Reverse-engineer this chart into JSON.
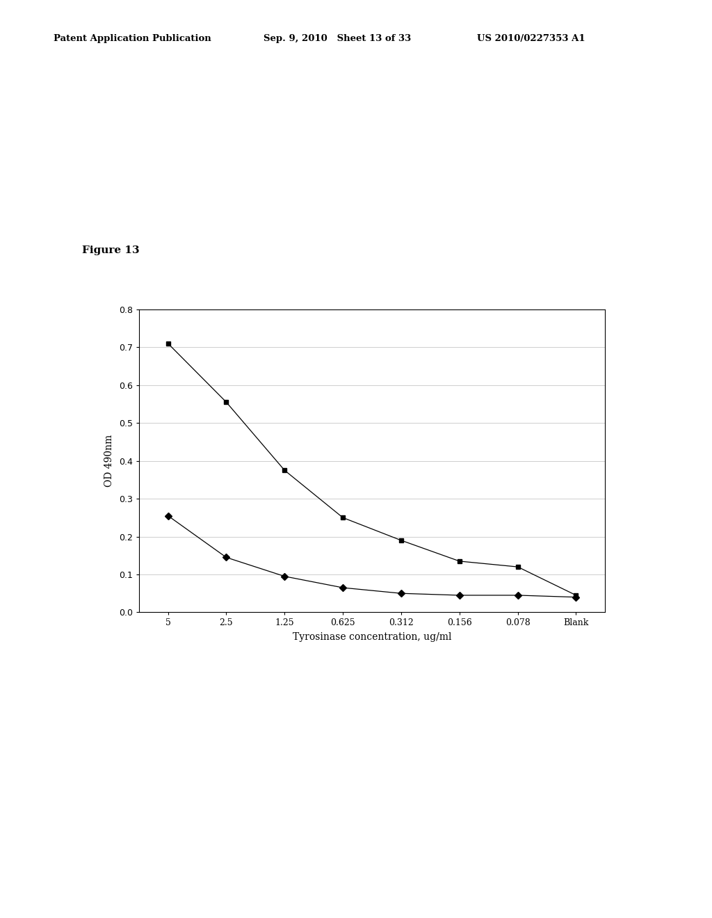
{
  "x_labels": [
    "5",
    "2.5",
    "1.25",
    "0.625",
    "0.312",
    "0.156",
    "0.078",
    "Blank"
  ],
  "series_square": [
    0.71,
    0.555,
    0.375,
    0.25,
    0.19,
    0.135,
    0.12,
    0.045
  ],
  "series_diamond": [
    0.255,
    0.145,
    0.095,
    0.065,
    0.05,
    0.045,
    0.045,
    0.04
  ],
  "ylim": [
    0,
    0.8
  ],
  "yticks": [
    0,
    0.1,
    0.2,
    0.3,
    0.4,
    0.5,
    0.6,
    0.7,
    0.8
  ],
  "xlabel": "Tyrosinase concentration, ug/ml",
  "ylabel": "OD 490nm",
  "figure_label": "Figure 13",
  "header_left": "Patent Application Publication",
  "header_mid": "Sep. 9, 2010   Sheet 13 of 33",
  "header_right": "US 2010/0227353 A1",
  "line_color": "#000000",
  "marker_square": "s",
  "marker_diamond": "D",
  "marker_size": 5,
  "background_color": "#ffffff",
  "grid_color": "#bbbbbb"
}
